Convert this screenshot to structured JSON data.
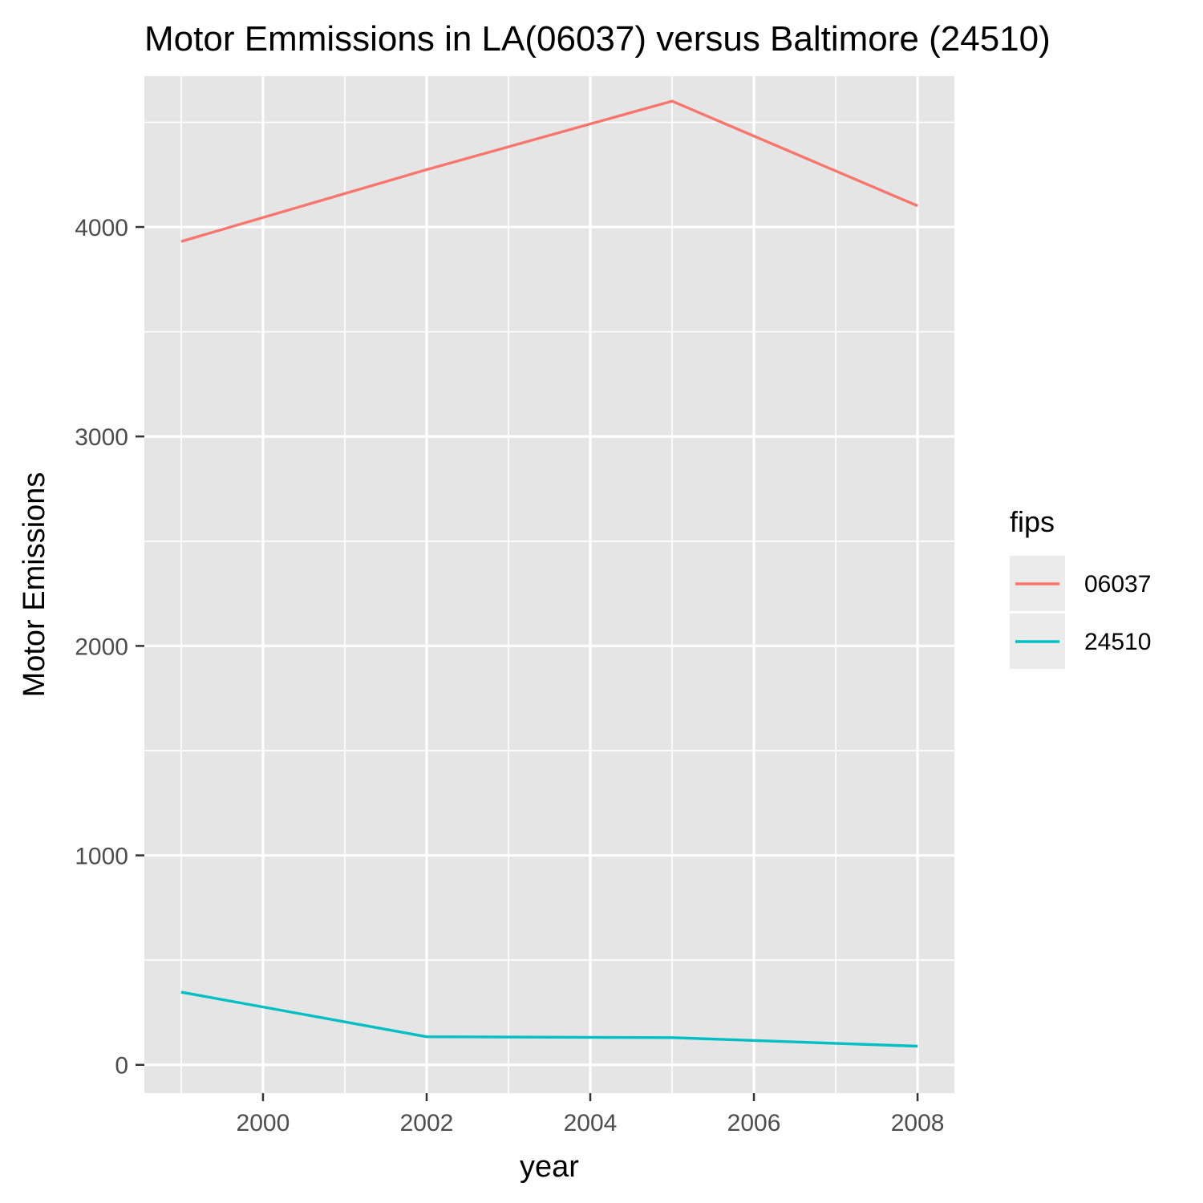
{
  "chart_data": {
    "type": "line",
    "title": "Motor Emmissions in LA(06037) versus Baltimore (24510)",
    "xlabel": "year",
    "ylabel": "Motor Emissions",
    "xlim": [
      1998.55,
      2008.45
    ],
    "ylim": [
      -135,
      4720
    ],
    "x_ticks": [
      2000,
      2002,
      2004,
      2006,
      2008
    ],
    "x_tick_labels": [
      "2000",
      "2002",
      "2004",
      "2006",
      "2008"
    ],
    "x_minor_ticks": [
      1999,
      2001,
      2003,
      2005,
      2007
    ],
    "y_ticks": [
      0,
      1000,
      2000,
      3000,
      4000
    ],
    "y_tick_labels": [
      "0",
      "1000",
      "2000",
      "3000",
      "4000"
    ],
    "y_minor_ticks": [
      500,
      1500,
      2500,
      3500,
      4500
    ],
    "grid": true,
    "legend": {
      "title": "fips",
      "position": "right"
    },
    "series": [
      {
        "name": "06037",
        "color": "#F8766D",
        "x": [
          1999,
          2002,
          2005,
          2008
        ],
        "y": [
          3931,
          4274,
          4601,
          4101
        ]
      },
      {
        "name": "24510",
        "color": "#00BFC4",
        "x": [
          1999,
          2002,
          2005,
          2008
        ],
        "y": [
          347,
          134,
          130,
          89
        ]
      }
    ]
  }
}
